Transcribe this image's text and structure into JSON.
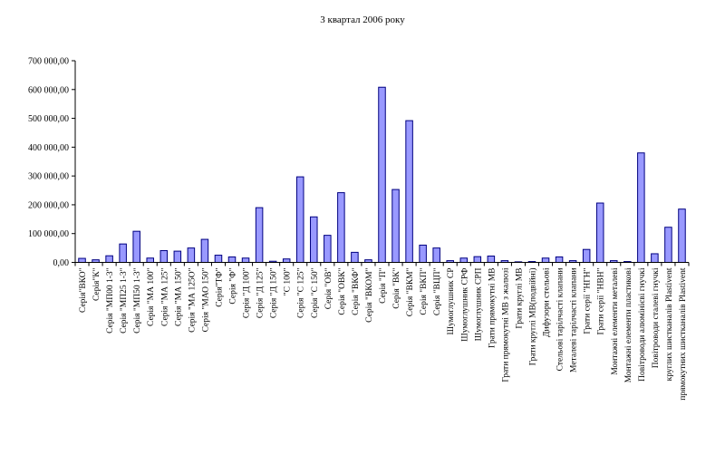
{
  "chart_data": {
    "type": "bar",
    "title": "3 квартал 2006 року",
    "ylim": [
      0,
      700000
    ],
    "yticks": [
      0,
      100000,
      200000,
      300000,
      400000,
      500000,
      600000,
      700000
    ],
    "ytick_labels": [
      "0,00",
      "100 000,00",
      "200 000,00",
      "300 000,00",
      "400 000,00",
      "500 000,00",
      "600 000,00",
      "700 000,00"
    ],
    "bar_color": "#9999ff",
    "categories": [
      "Серія\"ВКО\"",
      "Серія\"К\"",
      "Серія \"МП00 1-3\"",
      "Серія \"МП25 1-3\"",
      "Серія \"МП50 1-3\"",
      "Серія \"МА 100\"",
      "Серія \"МА 125\"",
      "Серія \"МА 150\"",
      "Серія \"МА 125О\"",
      "Серія \"МАО 150\"",
      "Серія\"ТФ\"",
      "Серія \"Ф\"",
      "Серія \"Д 100\"",
      "Серія \"Д 125\"",
      "Серія \"Д 150\"",
      "\"С 100\"",
      "Серія \"С 125\"",
      "Серія \"С 150\"",
      "Серія \"ОВ\"",
      "Серія \"ОВК\"",
      "Серія \"ВКФ\"",
      "Серія \"ВКОМ\"",
      "Серія \"П\"",
      "Серія \"ВК\"",
      "Серія \"ВКМ\"",
      "Серія \"ВКП\"",
      "Серія \"ВЦП\"",
      "Шумоглушник СР",
      "Шумоглушник СРФ",
      "Шумоглушник СРП",
      "Грати прямокутні МВ",
      "Грати прямокутні МВ з жалюзі",
      "Грати круглі МВ",
      "Грати круглі МВ(подвійні)",
      "Дифузори стельові",
      "Стельові тарілчасті клапани",
      "Металеві тарілчасті клапани",
      "Грати серії \"НГН\"",
      "Грати серії \"НВН\"",
      "Монтажні елементи металеві",
      "Монтажні елементи пластикові",
      "Повітроводи алюмінієві гнучкі",
      "Повітроводи сталеві гнучкі",
      "круглих шистканалів Plastivent",
      "прямокутних шистканалів Plastivent"
    ],
    "values": [
      14000,
      9000,
      23000,
      64000,
      108000,
      15000,
      41000,
      39000,
      50000,
      80000,
      25000,
      19000,
      15000,
      190000,
      4000,
      12000,
      297000,
      158000,
      94000,
      242000,
      35000,
      9000,
      608000,
      253000,
      492000,
      60000,
      50000,
      6000,
      15000,
      20000,
      22000,
      6000,
      2000,
      3000,
      15000,
      19000,
      6000,
      45000,
      206000,
      6000,
      3000,
      380000,
      30000,
      122000,
      185000
    ]
  }
}
